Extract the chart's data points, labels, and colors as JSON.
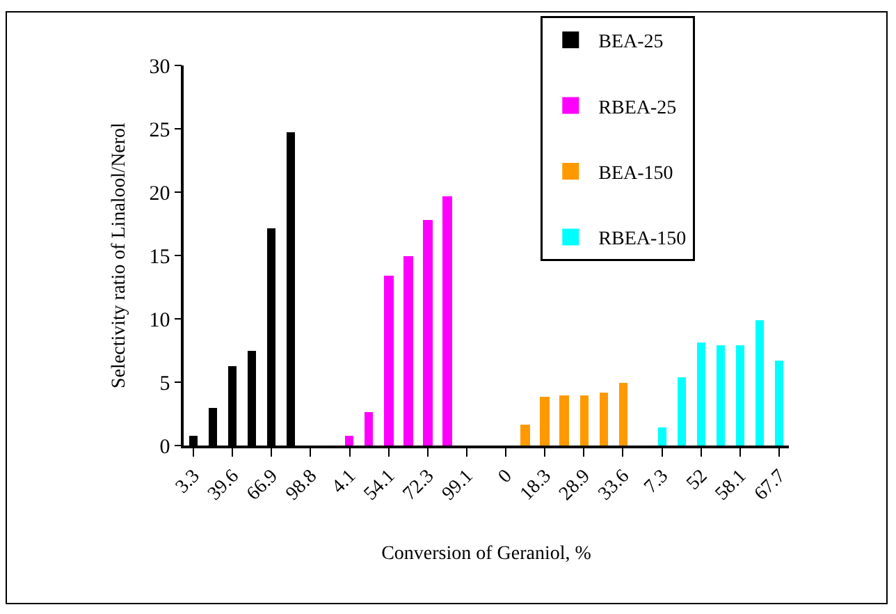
{
  "chart_data": {
    "type": "bar",
    "xlabel": "Conversion of Geraniol, %",
    "ylabel": "Selectivity ratio of Linalool/Nerol",
    "categories": [
      "3.3",
      null,
      "39.6",
      null,
      "66.9",
      null,
      "98.8",
      null,
      "4.1",
      null,
      "54.1",
      null,
      "72.3",
      null,
      "99.1",
      null,
      "0",
      null,
      "18.3",
      null,
      "28.9",
      null,
      "33.6",
      null,
      "7.3",
      null,
      "52",
      null,
      "58.1",
      null,
      "67.7"
    ],
    "series": [
      {
        "name": "BEA-25",
        "color": "#000000",
        "values": [
          0.8,
          3,
          6.3,
          7.5,
          17.1,
          24.7,
          null,
          null,
          null,
          null,
          null,
          null,
          null,
          null,
          null,
          null,
          null,
          null,
          null,
          null,
          null,
          null,
          null,
          null,
          null,
          null,
          null,
          null,
          null,
          null,
          null
        ]
      },
      {
        "name": "RBEA-25",
        "color": "#ff00ff",
        "values": [
          null,
          null,
          null,
          null,
          null,
          null,
          null,
          null,
          0.8,
          2.6,
          13.4,
          15,
          17.8,
          19.7,
          null,
          null,
          null,
          null,
          null,
          null,
          null,
          null,
          null,
          null,
          null,
          null,
          null,
          null,
          null,
          null,
          null
        ]
      },
      {
        "name": "BEA-150",
        "color": "#ff9900",
        "values": [
          null,
          null,
          null,
          null,
          null,
          null,
          null,
          null,
          null,
          null,
          null,
          null,
          null,
          null,
          null,
          null,
          null,
          1.7,
          3.8,
          4,
          4,
          4.2,
          4.9,
          null,
          null,
          null,
          null,
          null,
          null,
          null,
          null
        ]
      },
      {
        "name": "RBEA-150",
        "color": "#00ffff",
        "values": [
          null,
          null,
          null,
          null,
          null,
          null,
          null,
          null,
          null,
          null,
          null,
          null,
          null,
          null,
          null,
          null,
          null,
          null,
          null,
          null,
          null,
          null,
          null,
          null,
          1.4,
          5.4,
          8.1,
          7.9,
          7.9,
          9.9,
          6.7
        ]
      }
    ],
    "ylim": [
      0,
      30
    ],
    "yticks": [
      0,
      5,
      10,
      15,
      20,
      25,
      30
    ],
    "grid": false,
    "legend": "top right"
  }
}
